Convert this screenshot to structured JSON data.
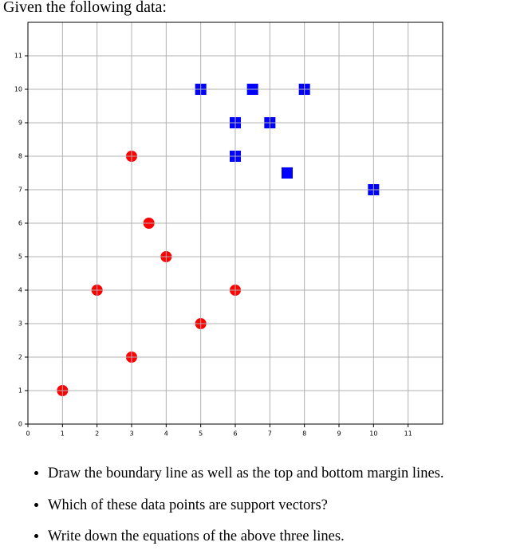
{
  "intro": "Given the following data:",
  "chart_data": {
    "type": "scatter",
    "series": [
      {
        "color": "#ff0000",
        "marker": "circle",
        "x": [
          1,
          2,
          3,
          3,
          3.5,
          4,
          5,
          6
        ],
        "values": [
          1,
          4,
          2,
          8,
          6,
          5,
          3,
          4
        ]
      },
      {
        "color": "#0000ff",
        "marker": "square",
        "x": [
          5,
          6,
          6,
          6.5,
          7,
          7.5,
          8,
          10
        ],
        "values": [
          10,
          9,
          8,
          10,
          9,
          7.5,
          10,
          7
        ]
      }
    ],
    "xlim": [
      0,
      12
    ],
    "ylim": [
      0,
      12
    ],
    "xticks": [
      0,
      1,
      2,
      3,
      4,
      5,
      6,
      7,
      8,
      9,
      10,
      11
    ],
    "yticks": [
      0,
      1,
      2,
      3,
      4,
      5,
      6,
      7,
      8,
      9,
      10,
      11
    ],
    "grid": true
  },
  "bullets": [
    "Draw the boundary line as well as the top and bottom margin lines.",
    "Which of these data points are support vectors?",
    "Write down the equations of the above three lines."
  ]
}
